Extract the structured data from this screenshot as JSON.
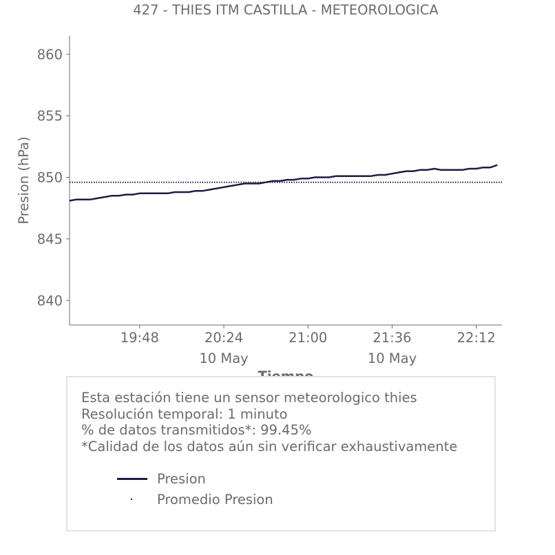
{
  "chart_data": {
    "type": "line",
    "title": "427 - THIES ITM CASTILLA - METEOROLOGICA",
    "xlabel": "Tiempo",
    "ylabel": "Presion (hPa)",
    "ylim": [
      838,
      861.5
    ],
    "xlim": [
      "19:18",
      "22:23"
    ],
    "yticks": [
      840,
      845,
      850,
      855,
      860
    ],
    "xticks": [
      {
        "time": "19:48",
        "label": "19:48",
        "sublabel": ""
      },
      {
        "time": "20:24",
        "label": "20:24",
        "sublabel": "10 May"
      },
      {
        "time": "21:00",
        "label": "21:00",
        "sublabel": ""
      },
      {
        "time": "21:36",
        "label": "21:36",
        "sublabel": "10 May"
      },
      {
        "time": "22:12",
        "label": "22:12",
        "sublabel": ""
      }
    ],
    "grid": false,
    "series": [
      {
        "name": "Presion",
        "color": "#1c1c44",
        "style": "solid",
        "x": [
          "19:18",
          "19:21",
          "19:24",
          "19:27",
          "19:30",
          "19:33",
          "19:36",
          "19:39",
          "19:42",
          "19:45",
          "19:48",
          "19:51",
          "19:54",
          "19:57",
          "20:00",
          "20:03",
          "20:06",
          "20:09",
          "20:12",
          "20:15",
          "20:18",
          "20:21",
          "20:24",
          "20:27",
          "20:30",
          "20:33",
          "20:36",
          "20:39",
          "20:42",
          "20:45",
          "20:48",
          "20:51",
          "20:54",
          "20:57",
          "21:00",
          "21:03",
          "21:06",
          "21:09",
          "21:12",
          "21:15",
          "21:18",
          "21:21",
          "21:24",
          "21:27",
          "21:30",
          "21:33",
          "21:36",
          "21:39",
          "21:42",
          "21:45",
          "21:48",
          "21:51",
          "21:54",
          "21:57",
          "22:00",
          "22:03",
          "22:06",
          "22:09",
          "22:12",
          "22:15",
          "22:18",
          "22:21"
        ],
        "y": [
          848.1,
          848.2,
          848.2,
          848.2,
          848.3,
          848.4,
          848.5,
          848.5,
          848.6,
          848.6,
          848.7,
          848.7,
          848.7,
          848.7,
          848.7,
          848.8,
          848.8,
          848.8,
          848.9,
          848.9,
          849.0,
          849.1,
          849.2,
          849.3,
          849.4,
          849.5,
          849.5,
          849.5,
          849.6,
          849.7,
          849.7,
          849.8,
          849.8,
          849.9,
          849.9,
          850.0,
          850.0,
          850.0,
          850.1,
          850.1,
          850.1,
          850.1,
          850.1,
          850.1,
          850.2,
          850.2,
          850.3,
          850.4,
          850.5,
          850.5,
          850.6,
          850.6,
          850.7,
          850.6,
          850.6,
          850.6,
          850.6,
          850.7,
          850.7,
          850.8,
          850.8,
          851.0
        ]
      },
      {
        "name": "Promedio Presion",
        "color": "#1c1c44",
        "style": "dotted",
        "x": [
          "19:18",
          "22:23"
        ],
        "y": [
          849.6,
          849.6
        ]
      }
    ],
    "legend_position": "bottom"
  },
  "info": {
    "lines": [
      "Esta estación tiene un sensor meteorologico thies",
      "Resolución temporal: 1 minuto",
      "% de datos transmitidos*: 99.45%",
      "*Calidad de los datos aún sin verificar exhaustivamente"
    ]
  }
}
